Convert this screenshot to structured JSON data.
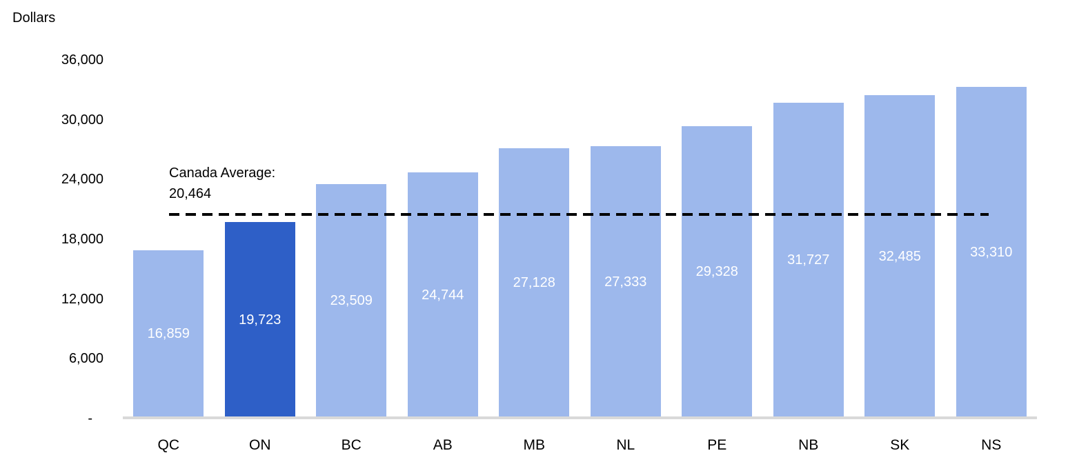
{
  "chart_data": {
    "type": "bar",
    "ylabel": "Dollars",
    "categories": [
      "QC",
      "ON",
      "BC",
      "AB",
      "MB",
      "NL",
      "PE",
      "NB",
      "SK",
      "NS"
    ],
    "values": [
      16859,
      19723,
      23509,
      24744,
      27128,
      27333,
      29328,
      31727,
      32485,
      33310
    ],
    "value_labels": [
      "16,859",
      "19,723",
      "23,509",
      "24,744",
      "27,128",
      "27,333",
      "29,328",
      "31,727",
      "32,485",
      "33,310"
    ],
    "highlighted_category": "ON",
    "ylim": [
      0,
      36000
    ],
    "ytick_interval": 6000,
    "yticks": [
      "36,000",
      "30,000",
      "24,000",
      "18,000",
      "12,000",
      "6,000",
      "-"
    ],
    "grid": false,
    "legend_position": "none",
    "annotation": {
      "label_line1": "Canada Average:",
      "label_line2": "20,464",
      "value": 20464
    },
    "colors": {
      "bar_default": "#9DB8EC",
      "bar_highlight": "#2E5FC7",
      "axis_line": "#D9D9D9",
      "annotation_line": "#000000",
      "data_label_text": "#FFFFFF",
      "axis_text": "#000000"
    }
  }
}
